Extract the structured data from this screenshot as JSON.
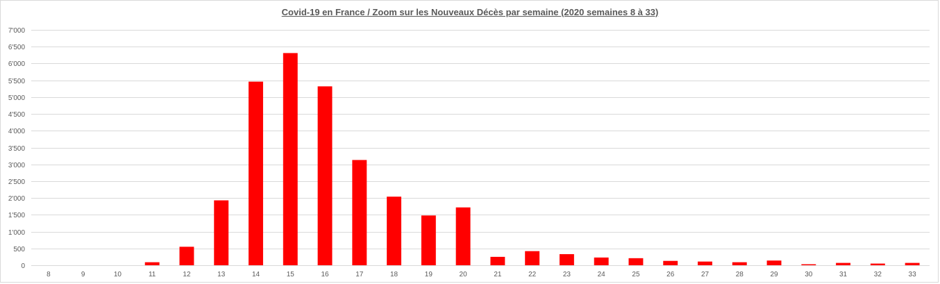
{
  "chart_data": {
    "type": "bar",
    "title": "Covid-19 en France / Zoom sur les Nouveaux Décès par semaine (2020 semaines 8 à 33)",
    "xlabel": "",
    "ylabel": "",
    "categories": [
      "8",
      "9",
      "10",
      "11",
      "12",
      "13",
      "14",
      "15",
      "16",
      "17",
      "18",
      "19",
      "20",
      "21",
      "22",
      "23",
      "24",
      "25",
      "26",
      "27",
      "28",
      "29",
      "30",
      "31",
      "32",
      "33"
    ],
    "values": [
      0,
      0,
      0,
      90,
      550,
      1930,
      5460,
      6310,
      5320,
      3130,
      2040,
      1480,
      1720,
      250,
      420,
      330,
      230,
      210,
      130,
      110,
      90,
      140,
      30,
      70,
      50,
      70
    ],
    "ylim": [
      0,
      7000
    ],
    "yticks": [
      0,
      500,
      1000,
      1500,
      2000,
      2500,
      3000,
      3500,
      4000,
      4500,
      5000,
      5500,
      6000,
      6500,
      7000
    ],
    "ytick_labels": [
      "0",
      "500",
      "1'000",
      "1'500",
      "2'000",
      "2'500",
      "3'000",
      "3'500",
      "4'000",
      "4'500",
      "5'000",
      "5'500",
      "6'000",
      "6'500",
      "7'000"
    ],
    "grid": true,
    "legend": "none",
    "bar_color": "#ff0000",
    "grid_color": "#d9d9d9",
    "label_color": "#595959"
  }
}
